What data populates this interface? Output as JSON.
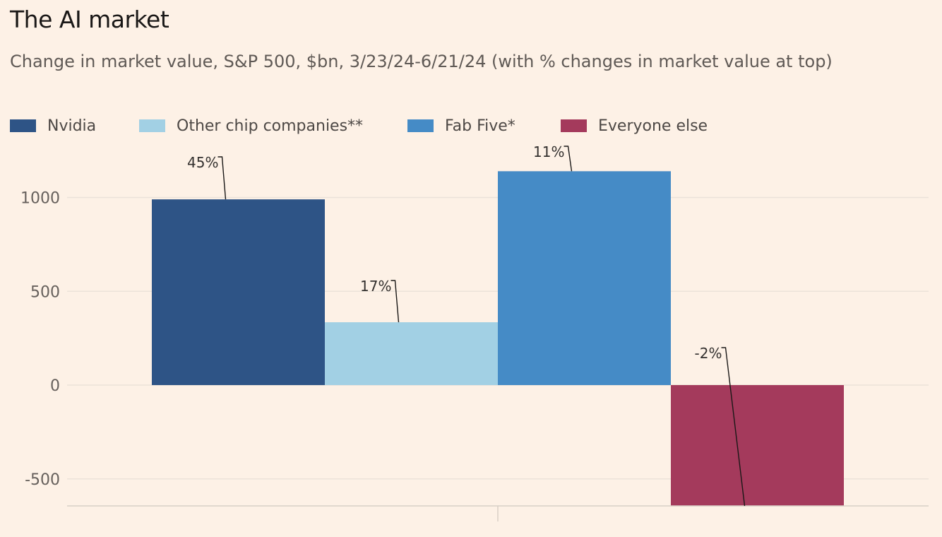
{
  "chart_data": {
    "type": "bar",
    "title": "The AI market",
    "subtitle": "Change in market value, S&P 500, $bn, 3/23/24-6/21/24 (with % changes in market value at top)",
    "categories": [
      "Nvidia",
      "Other chip companies**",
      "Fab Five*",
      "Everyone else"
    ],
    "values": [
      990,
      335,
      1140,
      -680
    ],
    "pct_labels": [
      "45%",
      "17%",
      "11%",
      "-2%"
    ],
    "colors": [
      "#2e5486",
      "#a2d0e4",
      "#458bc6",
      "#a43a5c"
    ],
    "ylim": [
      -640,
      1150
    ],
    "yticks": [
      1000,
      500,
      0,
      -500
    ],
    "ytick_labels": [
      "1000",
      "500",
      "0",
      "-500"
    ],
    "grid": true,
    "legend": "top"
  }
}
